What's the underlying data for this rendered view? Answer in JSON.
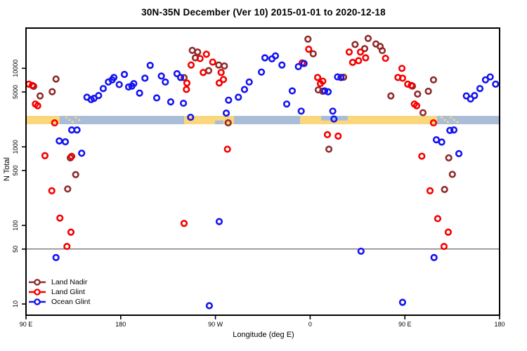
{
  "chart_data": {
    "type": "scatter",
    "title": "30N-35N December (Ver 10)   2015-01-01 to 2020-12-18",
    "xlabel": "Longitude (deg E)",
    "ylabel": "N Total",
    "x_axis": {
      "range": [
        0,
        450
      ],
      "unit": "degrees east of 90E (axis wraps: 90E,180,90W,0,90E,180)",
      "ticks": [
        {
          "deg": 0,
          "label": "90 E"
        },
        {
          "deg": 90,
          "label": "180"
        },
        {
          "deg": 180,
          "label": "90 W"
        },
        {
          "deg": 270,
          "label": "0"
        },
        {
          "deg": 360,
          "label": "90 E"
        },
        {
          "deg": 450,
          "label": "180"
        }
      ]
    },
    "y_axis": {
      "scale": "log",
      "min": 7.2,
      "max": 32500,
      "ticks": [
        10,
        50,
        100,
        500,
        1000,
        5000,
        10000
      ]
    },
    "reference_line_n": 50,
    "grid": "off",
    "legend_position": "bottom-left",
    "land_ocean_band": {
      "n_top": 2480,
      "n_bottom": 1940,
      "ocean_color": "#a9bdd8",
      "land_color": "#fbd77b",
      "land_segments": [
        {
          "deg_start": 0,
          "deg_end": 32,
          "style": "full"
        },
        {
          "deg_start": 37.4,
          "deg_end": 51,
          "style": "speckle"
        },
        {
          "deg_start": 150.2,
          "deg_end": 197.6,
          "style": "full"
        },
        {
          "deg_start": 260.4,
          "deg_end": 390.6,
          "style": "full"
        },
        {
          "deg_start": 393.9,
          "deg_end": 411.3,
          "style": "speckle"
        }
      ],
      "ocean_notches": [
        {
          "deg_start": 179.6,
          "deg_end": 187.6,
          "style": "bottom"
        },
        {
          "deg_start": 280.4,
          "deg_end": 305.8,
          "style": "top"
        }
      ]
    },
    "series": [
      {
        "name": "Land Nadir",
        "color": "#8f2b2b",
        "points": [
          [
            7.3,
            5900
          ],
          [
            13.4,
            4450
          ],
          [
            24.9,
            5040
          ],
          [
            28.5,
            7290
          ],
          [
            42.1,
            724
          ],
          [
            47.2,
            443
          ],
          [
            39.6,
            291
          ],
          [
            158.0,
            16900
          ],
          [
            163.1,
            16100
          ],
          [
            160.9,
            13600
          ],
          [
            173.6,
            9330
          ],
          [
            183.1,
            11000
          ],
          [
            188.5,
            10700
          ],
          [
            192.1,
            2020
          ],
          [
            150.2,
            7600
          ],
          [
            267.9,
            23500
          ],
          [
            272.9,
            15300
          ],
          [
            277.7,
            5310
          ],
          [
            281.9,
            5100
          ],
          [
            287.8,
            933
          ],
          [
            301.8,
            7700
          ],
          [
            312.7,
            20100
          ],
          [
            325.1,
            24000
          ],
          [
            332.5,
            20400
          ],
          [
            321.8,
            17800
          ],
          [
            336.5,
            19000
          ],
          [
            338.5,
            16800
          ],
          [
            346.7,
            4450
          ],
          [
            367.2,
            5940
          ],
          [
            372.1,
            4700
          ],
          [
            377.2,
            2720
          ],
          [
            382.3,
            5100
          ],
          [
            387.2,
            7130
          ],
          [
            397.7,
            287
          ],
          [
            401.7,
            724
          ],
          [
            405.1,
            447
          ]
        ]
      },
      {
        "name": "Land Glint",
        "color": "#f40000",
        "points": [
          [
            2.7,
            6280
          ],
          [
            6.0,
            6050
          ],
          [
            8.9,
            3510
          ],
          [
            11.1,
            3340
          ],
          [
            27.2,
            2020
          ],
          [
            18.0,
            772
          ],
          [
            43.4,
            757
          ],
          [
            24.5,
            276
          ],
          [
            32.2,
            124
          ],
          [
            42.7,
            82
          ],
          [
            38.9,
            54
          ],
          [
            152.9,
            6480
          ],
          [
            152.4,
            5380
          ],
          [
            171.4,
            15100
          ],
          [
            165.4,
            13300
          ],
          [
            156.9,
            11000
          ],
          [
            168.4,
            8840
          ],
          [
            177.4,
            12000
          ],
          [
            185.4,
            8840
          ],
          [
            183.6,
            6500
          ],
          [
            187.6,
            7200
          ],
          [
            191.4,
            933
          ],
          [
            150.2,
            106
          ],
          [
            268.6,
            17500
          ],
          [
            262.4,
            11700
          ],
          [
            277.1,
            7640
          ],
          [
            282.0,
            6850
          ],
          [
            279.7,
            6390
          ],
          [
            286.4,
            1430
          ],
          [
            296.6,
            1370
          ],
          [
            307.1,
            16100
          ],
          [
            317.8,
            16100
          ],
          [
            310.4,
            11900
          ],
          [
            316.0,
            12500
          ],
          [
            322.7,
            13600
          ],
          [
            341.6,
            13400
          ],
          [
            357.2,
            9970
          ],
          [
            353.4,
            7640
          ],
          [
            357.8,
            7490
          ],
          [
            362.7,
            6280
          ],
          [
            366.1,
            6050
          ],
          [
            369.0,
            3510
          ],
          [
            371.2,
            3340
          ],
          [
            387.2,
            2020
          ],
          [
            376.1,
            760
          ],
          [
            383.9,
            276
          ],
          [
            391.2,
            122
          ],
          [
            401.2,
            82
          ],
          [
            397.2,
            54
          ]
        ]
      },
      {
        "name": "Ocean Glint",
        "color": "#1414f0",
        "points": [
          [
            57.9,
            4280
          ],
          [
            61.9,
            4000
          ],
          [
            64.6,
            4140
          ],
          [
            69.0,
            4500
          ],
          [
            73.4,
            5520
          ],
          [
            78.3,
            6700
          ],
          [
            81.9,
            7130
          ],
          [
            83.5,
            7640
          ],
          [
            88.6,
            6210
          ],
          [
            93.5,
            8360
          ],
          [
            97.5,
            5790
          ],
          [
            100.6,
            5940
          ],
          [
            102.4,
            6390
          ],
          [
            107.9,
            4830
          ],
          [
            113.0,
            7490
          ],
          [
            118.0,
            10900
          ],
          [
            124.2,
            4200
          ],
          [
            128.6,
            7970
          ],
          [
            132.4,
            6690
          ],
          [
            137.5,
            3740
          ],
          [
            143.5,
            8530
          ],
          [
            146.9,
            7640
          ],
          [
            149.6,
            3590
          ],
          [
            43.4,
            1640
          ],
          [
            48.5,
            1640
          ],
          [
            31.6,
            1190
          ],
          [
            37.4,
            1160
          ],
          [
            52.9,
            830
          ],
          [
            28.5,
            39
          ],
          [
            156.4,
            2380
          ],
          [
            190.3,
            2690
          ],
          [
            192.5,
            3930
          ],
          [
            201.8,
            4280
          ],
          [
            207.6,
            5370
          ],
          [
            212.1,
            6690
          ],
          [
            223.7,
            8950
          ],
          [
            227.0,
            13600
          ],
          [
            233.7,
            13200
          ],
          [
            237.0,
            14400
          ],
          [
            243.2,
            11000
          ],
          [
            247.7,
            3510
          ],
          [
            253.0,
            5160
          ],
          [
            258.8,
            10500
          ],
          [
            264.2,
            11500
          ],
          [
            261.5,
            2850
          ],
          [
            283.8,
            5160
          ],
          [
            287.1,
            5020
          ],
          [
            291.5,
            2850
          ],
          [
            292.6,
            2260
          ],
          [
            296.0,
            7770
          ],
          [
            299.3,
            7640
          ],
          [
            402.8,
            1620
          ],
          [
            406.6,
            1640
          ],
          [
            389.9,
            1230
          ],
          [
            395.0,
            1150
          ],
          [
            411.3,
            820
          ],
          [
            418.4,
            4450
          ],
          [
            422.4,
            4070
          ],
          [
            426.2,
            4500
          ],
          [
            431.3,
            5520
          ],
          [
            436.6,
            7130
          ],
          [
            441.1,
            7770
          ],
          [
            446.2,
            6280
          ],
          [
            183.6,
            112
          ],
          [
            174.2,
            9.5
          ],
          [
            357.8,
            10.5
          ],
          [
            318.3,
            47
          ],
          [
            387.7,
            39
          ]
        ]
      }
    ]
  }
}
